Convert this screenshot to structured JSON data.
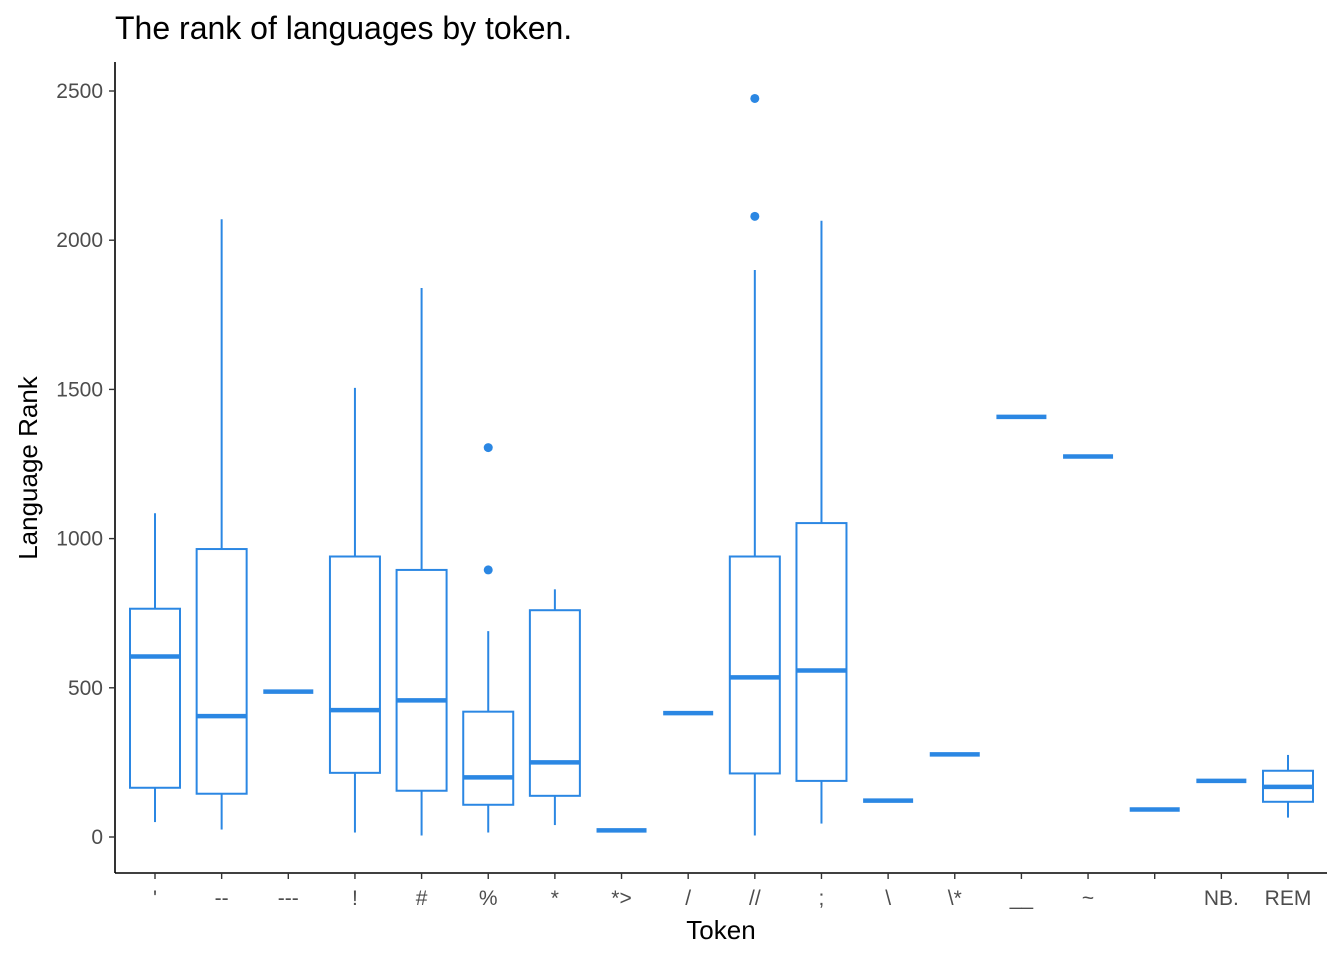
{
  "chart_data": {
    "type": "boxplot",
    "title": "The rank of languages by token.",
    "xlabel": "Token",
    "ylabel": "Language Rank",
    "ylim": [
      -120,
      2600
    ],
    "yticks": [
      0,
      500,
      1000,
      1500,
      2000,
      2500
    ],
    "grid": false,
    "legend": "none",
    "color": "#2b87e3",
    "categories": [
      "'",
      "--",
      "---",
      "!",
      "#",
      "%",
      "*",
      "*>",
      "/",
      "//",
      ";",
      "\\",
      "\\*",
      "__",
      "~",
      " ",
      "NB.",
      "REM"
    ],
    "boxes": [
      {
        "category": "'",
        "whisker_low": 50,
        "q1": 165,
        "median": 605,
        "q3": 765,
        "whisker_high": 1085,
        "outliers": []
      },
      {
        "category": "--",
        "whisker_low": 25,
        "q1": 145,
        "median": 405,
        "q3": 965,
        "whisker_high": 2070,
        "outliers": []
      },
      {
        "category": "---",
        "whisker_low": 487,
        "q1": 487,
        "median": 487,
        "q3": 487,
        "whisker_high": 487,
        "outliers": []
      },
      {
        "category": "!",
        "whisker_low": 15,
        "q1": 215,
        "median": 425,
        "q3": 940,
        "whisker_high": 1505,
        "outliers": []
      },
      {
        "category": "#",
        "whisker_low": 5,
        "q1": 155,
        "median": 458,
        "q3": 895,
        "whisker_high": 1840,
        "outliers": []
      },
      {
        "category": "%",
        "whisker_low": 15,
        "q1": 108,
        "median": 200,
        "q3": 420,
        "whisker_high": 690,
        "outliers": [
          895,
          1305
        ]
      },
      {
        "category": "*",
        "whisker_low": 40,
        "q1": 138,
        "median": 250,
        "q3": 760,
        "whisker_high": 830,
        "outliers": []
      },
      {
        "category": "*>",
        "whisker_low": 22,
        "q1": 22,
        "median": 22,
        "q3": 22,
        "whisker_high": 22,
        "outliers": []
      },
      {
        "category": "/",
        "whisker_low": 415,
        "q1": 415,
        "median": 415,
        "q3": 415,
        "whisker_high": 415,
        "outliers": []
      },
      {
        "category": "//",
        "whisker_low": 5,
        "q1": 213,
        "median": 535,
        "q3": 940,
        "whisker_high": 1900,
        "outliers": [
          2080,
          2475
        ]
      },
      {
        "category": ";",
        "whisker_low": 45,
        "q1": 188,
        "median": 558,
        "q3": 1052,
        "whisker_high": 2065,
        "outliers": []
      },
      {
        "category": "\\",
        "whisker_low": 122,
        "q1": 122,
        "median": 122,
        "q3": 122,
        "whisker_high": 122,
        "outliers": []
      },
      {
        "category": "\\*",
        "whisker_low": 277,
        "q1": 277,
        "median": 277,
        "q3": 277,
        "whisker_high": 277,
        "outliers": []
      },
      {
        "category": "__",
        "whisker_low": 1408,
        "q1": 1408,
        "median": 1408,
        "q3": 1408,
        "whisker_high": 1408,
        "outliers": []
      },
      {
        "category": "~",
        "whisker_low": 1275,
        "q1": 1275,
        "median": 1275,
        "q3": 1275,
        "whisker_high": 1275,
        "outliers": []
      },
      {
        "category": " ",
        "whisker_low": 92,
        "q1": 92,
        "median": 92,
        "q3": 92,
        "whisker_high": 92,
        "outliers": []
      },
      {
        "category": "NB.",
        "whisker_low": 188,
        "q1": 188,
        "median": 188,
        "q3": 188,
        "whisker_high": 188,
        "outliers": []
      },
      {
        "category": "REM",
        "whisker_low": 65,
        "q1": 118,
        "median": 168,
        "q3": 222,
        "whisker_high": 275,
        "outliers": []
      }
    ]
  }
}
